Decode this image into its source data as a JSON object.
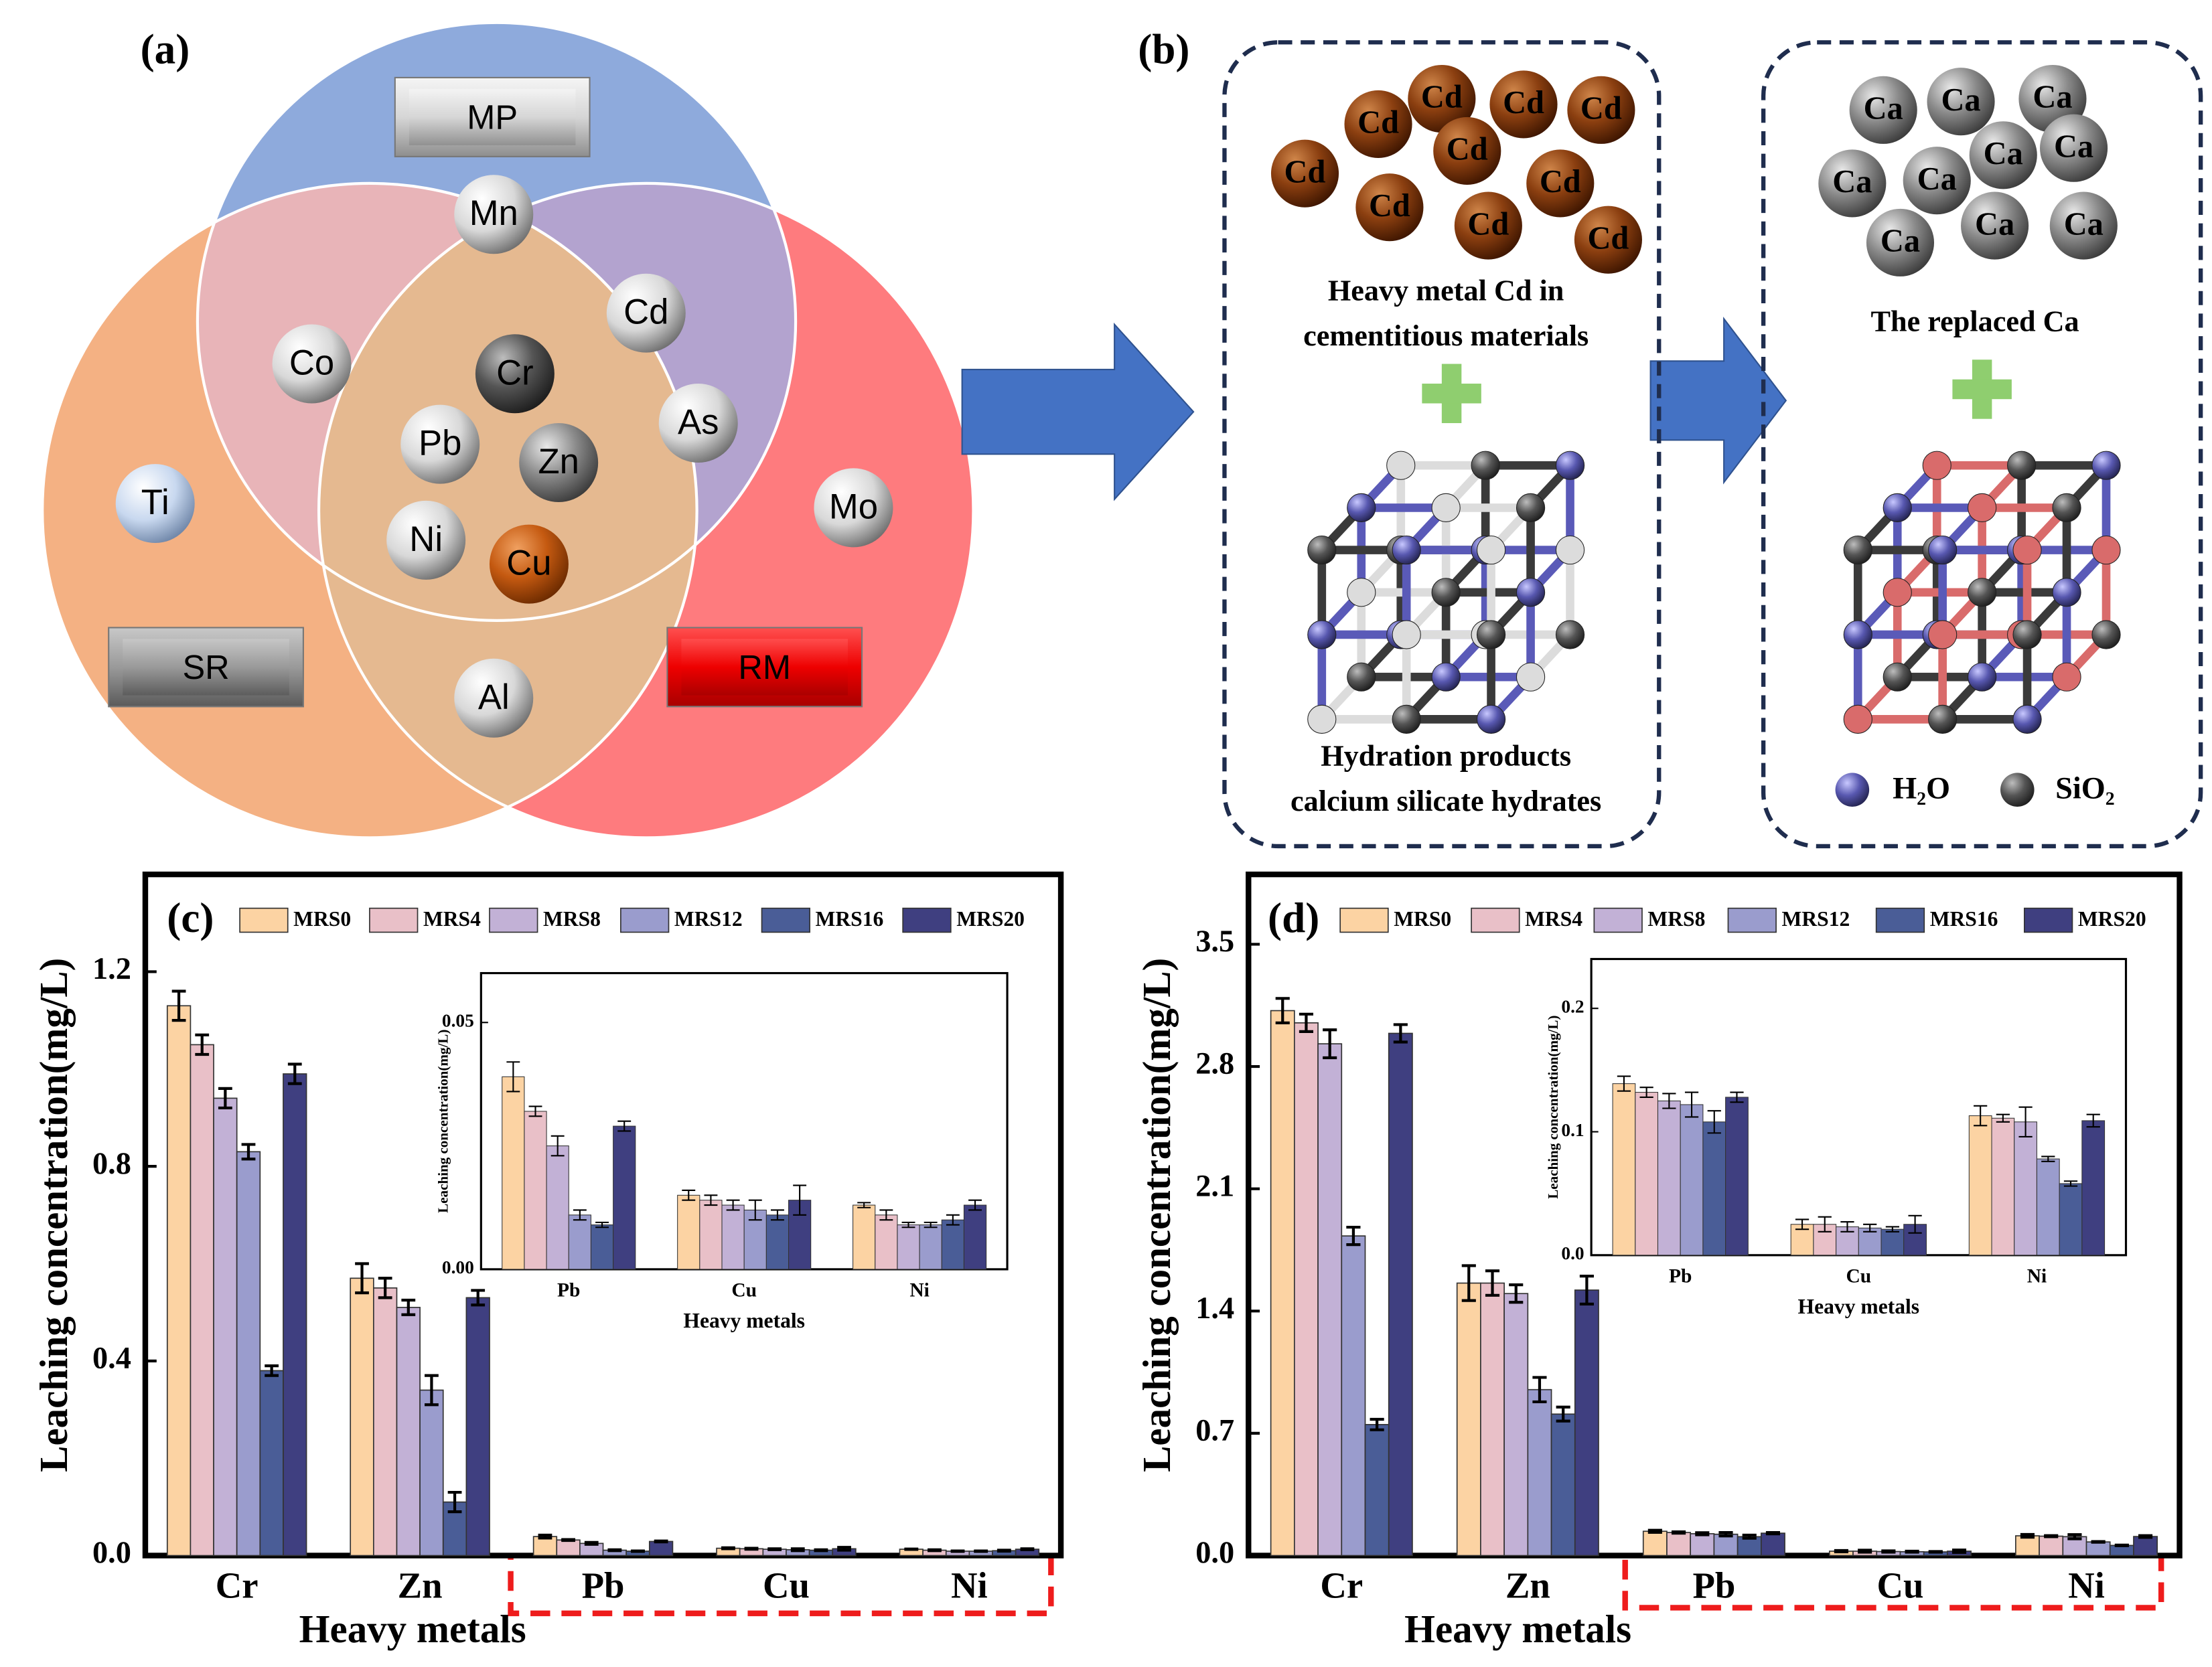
{
  "panel_labels": [
    "(a)",
    "(b)"
  ],
  "venn": {
    "sets": [
      "MP",
      "SR",
      "RM"
    ],
    "elements": [
      "Mn",
      "Co",
      "Cd",
      "Cr",
      "Pb",
      "Zn",
      "As",
      "Ni",
      "Cu",
      "Ti",
      "Mo",
      "Al"
    ]
  },
  "scheme": {
    "cd_ion": "Cd",
    "ca_ion": "Ca",
    "cd_caption": [
      "Heavy metal Cd in",
      "cementitious materials"
    ],
    "hydration_caption": [
      "Hydration products",
      "calcium silicate hydrates"
    ],
    "replaced_caption": "The replaced Ca",
    "legend": [
      "H₂O",
      "SiO₂"
    ]
  },
  "chart_data": [
    {
      "type": "bar",
      "annotation": "(c)",
      "xlabel": "Heavy metals",
      "ylabel": "Leaching concentration(mg/L)",
      "legend": "top",
      "categories": [
        "Cr",
        "Zn",
        "Pb",
        "Cu",
        "Ni"
      ],
      "ylim": [
        0,
        1.4
      ],
      "yticks": [
        {
          "value": 0,
          "label": "0.0"
        },
        0.4,
        0.8,
        1.2
      ],
      "series": [
        {
          "name": "MRS0",
          "color": "#fcd3a3",
          "values": [
            1.13,
            0.57,
            0.039,
            0.015,
            0.013
          ],
          "errors": [
            0.03,
            0.03,
            0.003,
            0.001,
            0.0005
          ]
        },
        {
          "name": "MRS4",
          "color": "#e9c0c8",
          "values": [
            1.05,
            0.55,
            0.032,
            0.014,
            0.011
          ],
          "errors": [
            0.02,
            0.02,
            0.001,
            0.001,
            0.001
          ]
        },
        {
          "name": "MRS8",
          "color": "#c2b1d6",
          "values": [
            0.94,
            0.51,
            0.025,
            0.013,
            0.009
          ],
          "errors": [
            0.02,
            0.015,
            0.002,
            0.001,
            0.0005
          ]
        },
        {
          "name": "MRS12",
          "color": "#9a9ccd",
          "values": [
            0.83,
            0.34,
            0.011,
            0.012,
            0.009
          ],
          "errors": [
            0.015,
            0.03,
            0.001,
            0.002,
            0.0005
          ]
        },
        {
          "name": "MRS16",
          "color": "#4a5d97",
          "values": [
            0.38,
            0.11,
            0.009,
            0.011,
            0.01
          ],
          "errors": [
            0.01,
            0.02,
            0.0005,
            0.001,
            0.001
          ]
        },
        {
          "name": "MRS20",
          "color": "#3f3f80",
          "values": [
            0.99,
            0.53,
            0.029,
            0.014,
            0.013
          ],
          "errors": [
            0.02,
            0.015,
            0.001,
            0.003,
            0.001
          ]
        }
      ]
    },
    {
      "type": "bar",
      "xlabel": "Heavy metals",
      "ylabel": "Leaching concentration(mg/L)",
      "categories": [
        "Pb",
        "Cu",
        "Ni"
      ],
      "ylim": [
        0,
        0.06
      ],
      "yticks": [
        {
          "value": 0,
          "label": "0.00"
        },
        0.05
      ],
      "series": [
        {
          "color": "#fcd3a3",
          "values": [
            0.039,
            0.015,
            0.013
          ],
          "errors": [
            0.003,
            0.001,
            0.0005
          ]
        },
        {
          "color": "#e9c0c8",
          "values": [
            0.032,
            0.014,
            0.011
          ],
          "errors": [
            0.001,
            0.001,
            0.001
          ]
        },
        {
          "color": "#c2b1d6",
          "values": [
            0.025,
            0.013,
            0.009
          ],
          "errors": [
            0.002,
            0.001,
            0.0005
          ]
        },
        {
          "color": "#9a9ccd",
          "values": [
            0.011,
            0.012,
            0.009
          ],
          "errors": [
            0.001,
            0.002,
            0.0005
          ]
        },
        {
          "color": "#4a5d97",
          "values": [
            0.009,
            0.011,
            0.01
          ],
          "errors": [
            0.0005,
            0.001,
            0.001
          ]
        },
        {
          "color": "#3f3f80",
          "values": [
            0.029,
            0.014,
            0.013
          ],
          "errors": [
            0.001,
            0.003,
            0.001
          ]
        }
      ]
    },
    {
      "type": "bar",
      "annotation": "(d)",
      "xlabel": "Heavy metals",
      "ylabel": "Leaching concentration(mg/L)",
      "legend": "top",
      "categories": [
        "Cr",
        "Zn",
        "Pb",
        "Cu",
        "Ni"
      ],
      "ylim": [
        0,
        3.9
      ],
      "yticks": [
        {
          "value": 0,
          "label": "0.0"
        },
        0.7,
        1.4,
        2.1,
        2.8,
        3.5
      ],
      "series": [
        {
          "name": "MRS0",
          "color": "#fcd3a3",
          "values": [
            3.12,
            1.56,
            0.139,
            0.025,
            0.113
          ],
          "errors": [
            0.07,
            0.1,
            0.006,
            0.004,
            0.008
          ]
        },
        {
          "name": "MRS4",
          "color": "#e9c0c8",
          "values": [
            3.05,
            1.56,
            0.132,
            0.025,
            0.111
          ],
          "errors": [
            0.05,
            0.07,
            0.004,
            0.006,
            0.003
          ]
        },
        {
          "name": "MRS8",
          "color": "#c2b1d6",
          "values": [
            2.93,
            1.5,
            0.125,
            0.023,
            0.108
          ],
          "errors": [
            0.08,
            0.05,
            0.006,
            0.004,
            0.012
          ]
        },
        {
          "name": "MRS12",
          "color": "#9a9ccd",
          "values": [
            1.83,
            0.95,
            0.122,
            0.022,
            0.078
          ],
          "errors": [
            0.05,
            0.07,
            0.01,
            0.003,
            0.002
          ]
        },
        {
          "name": "MRS16",
          "color": "#4a5d97",
          "values": [
            0.75,
            0.81,
            0.108,
            0.021,
            0.058
          ],
          "errors": [
            0.03,
            0.04,
            0.009,
            0.002,
            0.002
          ]
        },
        {
          "name": "MRS20",
          "color": "#3f3f80",
          "values": [
            2.99,
            1.52,
            0.128,
            0.025,
            0.109
          ],
          "errors": [
            0.05,
            0.08,
            0.004,
            0.007,
            0.005
          ]
        }
      ]
    },
    {
      "type": "bar",
      "xlabel": "Heavy metals",
      "ylabel": "Leaching concentration(mg/L)",
      "categories": [
        "Pb",
        "Cu",
        "Ni"
      ],
      "ylim": [
        0,
        0.24
      ],
      "yticks": [
        {
          "value": 0,
          "label": "0.0"
        },
        0.1,
        0.2
      ],
      "series": [
        {
          "color": "#fcd3a3",
          "values": [
            0.139,
            0.025,
            0.113
          ],
          "errors": [
            0.006,
            0.004,
            0.008
          ]
        },
        {
          "color": "#e9c0c8",
          "values": [
            0.132,
            0.025,
            0.111
          ],
          "errors": [
            0.004,
            0.006,
            0.003
          ]
        },
        {
          "color": "#c2b1d6",
          "values": [
            0.125,
            0.023,
            0.108
          ],
          "errors": [
            0.006,
            0.004,
            0.012
          ]
        },
        {
          "color": "#9a9ccd",
          "values": [
            0.122,
            0.022,
            0.078
          ],
          "errors": [
            0.01,
            0.003,
            0.002
          ]
        },
        {
          "color": "#4a5d97",
          "values": [
            0.108,
            0.021,
            0.058
          ],
          "errors": [
            0.009,
            0.002,
            0.002
          ]
        },
        {
          "color": "#3f3f80",
          "values": [
            0.128,
            0.025,
            0.109
          ],
          "errors": [
            0.004,
            0.007,
            0.005
          ]
        }
      ]
    }
  ]
}
